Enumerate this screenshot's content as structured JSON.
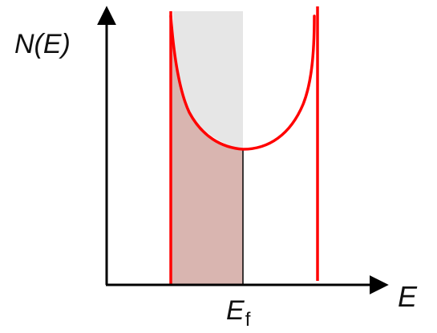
{
  "diagram": {
    "y_axis_label": "N(E)",
    "x_axis_label": "E",
    "fermi_label": {
      "main": "E",
      "subscript": "f"
    },
    "colors": {
      "axis": "#000000",
      "curve": "#ff0000",
      "filled_region": "#d9b5b0",
      "empty_region": "#e6e6e6",
      "fermi_line": "#000000"
    }
  }
}
